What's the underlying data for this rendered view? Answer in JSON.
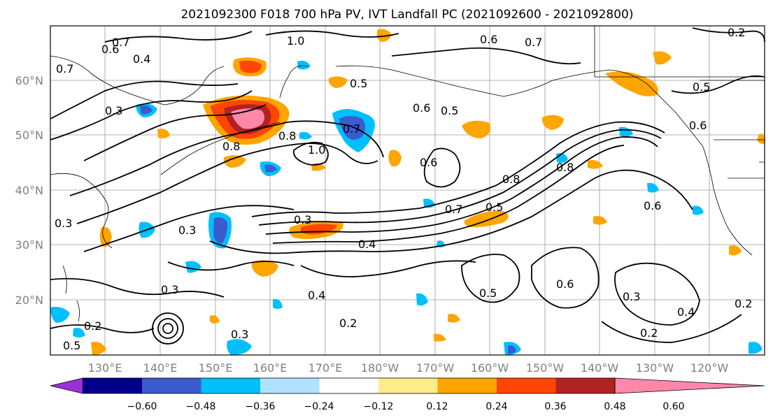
{
  "title": "2021092300 F018 700 hPa PV, IVT Landfall PC (2021092600 - 2021092800)",
  "lat_labels": [
    "60°N",
    "50°N",
    "40°N",
    "30°N",
    "20°N"
  ],
  "lon_labels": [
    "130°E",
    "140°E",
    "150°E",
    "160°E",
    "170°E",
    "180°W",
    "170°W",
    "160°W",
    "150°W",
    "140°W",
    "130°W",
    "120°W"
  ],
  "colorbar": {
    "ticks": [
      "−0.60",
      "−0.48",
      "−0.36",
      "−0.24",
      "−0.12",
      "0.12",
      "0.24",
      "0.36",
      "0.48",
      "0.60"
    ],
    "colors": [
      "#9b30d9",
      "#00008b",
      "#3b5bcf",
      "#00bfff",
      "#b0e2ff",
      "#ffffff",
      "#ffec8b",
      "#ffa500",
      "#ff4500",
      "#b22222",
      "#ff88aa"
    ]
  },
  "contour_labels": [
    {
      "text": "1.0"
    },
    {
      "text": "0.6"
    },
    {
      "text": "0.7"
    },
    {
      "text": "0.6"
    },
    {
      "text": "0.7"
    },
    {
      "text": "0.4"
    },
    {
      "text": "0.3"
    },
    {
      "text": "0.6"
    },
    {
      "text": "0.5"
    },
    {
      "text": "1.0"
    },
    {
      "text": "0.7"
    },
    {
      "text": "0.8"
    },
    {
      "text": "0.8"
    },
    {
      "text": "0.3"
    },
    {
      "text": "0.4"
    },
    {
      "text": "0.3"
    },
    {
      "text": "0.3"
    },
    {
      "text": "0.4"
    },
    {
      "text": "0.2"
    },
    {
      "text": "0.3"
    },
    {
      "text": "0.2"
    },
    {
      "text": "0.5"
    },
    {
      "text": "0.6"
    },
    {
      "text": "0.3"
    },
    {
      "text": "0.2"
    },
    {
      "text": "0.4"
    },
    {
      "text": "0.2"
    },
    {
      "text": "0.8"
    },
    {
      "text": "0.7"
    },
    {
      "text": "0.5"
    },
    {
      "text": "0.6"
    },
    {
      "text": "0.5"
    },
    {
      "text": "0.6"
    },
    {
      "text": "0.5"
    },
    {
      "text": "0.8"
    },
    {
      "text": "0.7"
    },
    {
      "text": "0.2"
    },
    {
      "text": "0.3"
    },
    {
      "text": "0.5"
    },
    {
      "text": "0.6"
    }
  ]
}
